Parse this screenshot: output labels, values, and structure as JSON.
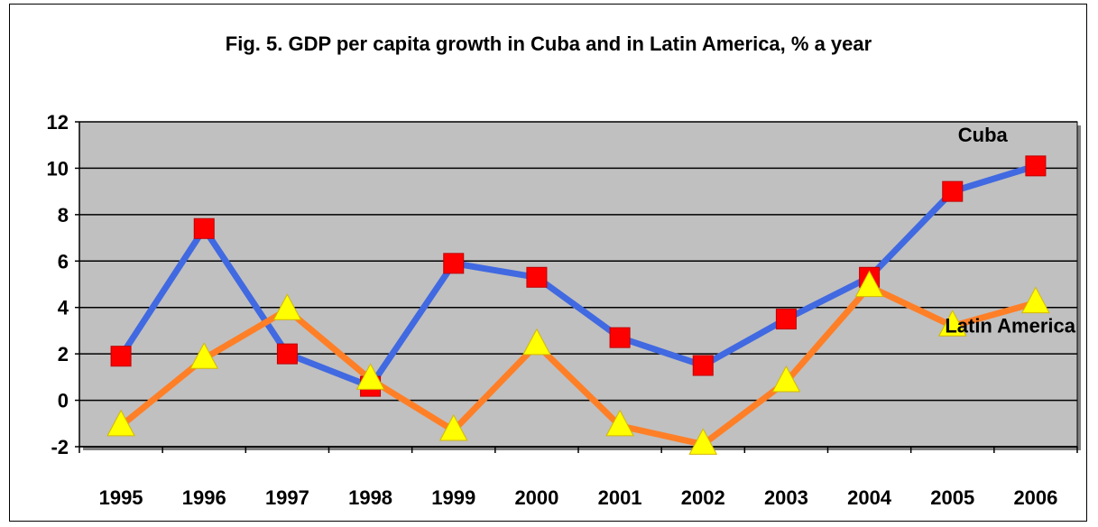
{
  "chart_data": {
    "type": "line",
    "title": "Fig. 5. GDP per capita growth in Cuba and in Latin America, % a year",
    "categories": [
      "1995",
      "1996",
      "1997",
      "1998",
      "1999",
      "2000",
      "2001",
      "2002",
      "2003",
      "2004",
      "2005",
      "2006"
    ],
    "ylim": [
      -2,
      12
    ],
    "yticks": [
      12,
      10,
      8,
      6,
      4,
      2,
      0,
      -2
    ],
    "grid": true,
    "legend": "none",
    "plot_background": "#c0c0c0",
    "series": [
      {
        "name": "Cuba",
        "values": [
          1.9,
          7.4,
          2.0,
          0.6,
          5.9,
          5.3,
          2.7,
          1.5,
          3.5,
          5.3,
          9.0,
          10.1
        ],
        "line_color": "#4169e1",
        "marker": "square",
        "marker_color": "#ff0000"
      },
      {
        "name": "Latin America",
        "values": [
          -1.1,
          1.8,
          3.9,
          0.9,
          -1.3,
          2.4,
          -1.1,
          -1.9,
          0.8,
          4.9,
          3.2,
          4.2
        ],
        "line_color": "#ff7f27",
        "marker": "triangle",
        "marker_color": "#ffff00"
      }
    ]
  }
}
